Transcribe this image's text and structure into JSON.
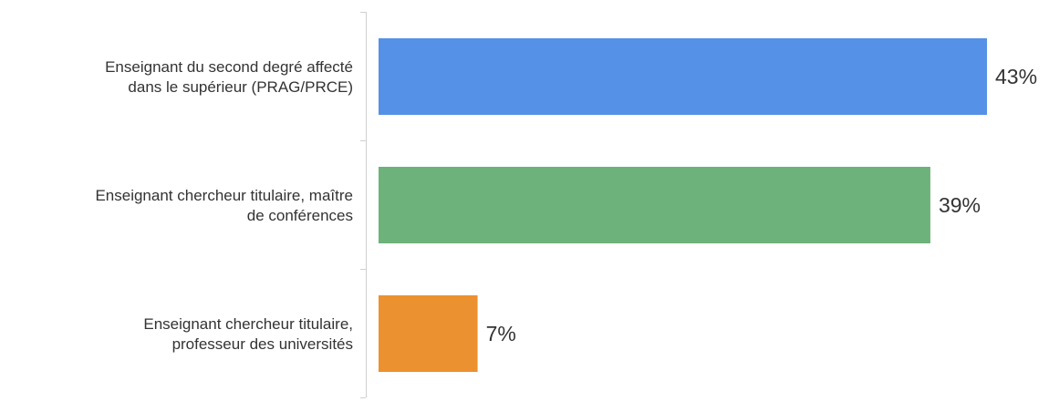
{
  "chart_data": {
    "type": "bar",
    "orientation": "horizontal",
    "title": "",
    "xlabel": "",
    "ylabel": "",
    "categories": [
      "Enseignant du second degré affecté dans le supérieur (PRAG/PRCE)",
      "Enseignant chercheur titulaire, maître de conférences",
      "Enseignant chercheur titulaire, professeur des universités"
    ],
    "category_lines": [
      [
        "Enseignant du second degré affecté",
        "dans le supérieur (PRAG/PRCE)"
      ],
      [
        "Enseignant chercheur titulaire, maître",
        "de conférences"
      ],
      [
        "Enseignant chercheur titulaire,",
        "professeur des universités"
      ]
    ],
    "values": [
      43,
      39,
      7
    ],
    "value_labels": [
      "43%",
      "39%",
      "7%"
    ],
    "colors": [
      "#5591e6",
      "#6db27b",
      "#ec912f"
    ],
    "xlim": [
      0,
      43
    ],
    "grid": false,
    "legend": "none"
  }
}
